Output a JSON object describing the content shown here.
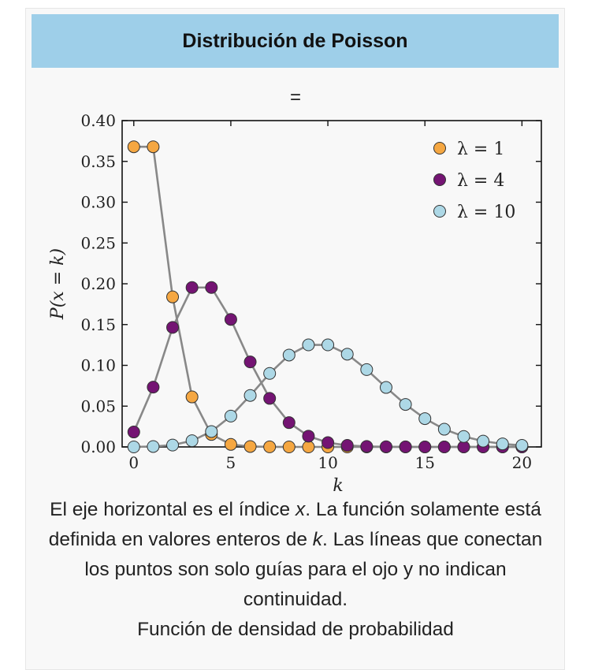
{
  "header": {
    "title": "Distribución de Poisson"
  },
  "top_label": "=",
  "caption": {
    "part1": "El eje horizontal es el índice ",
    "var_x": "x",
    "part2": ". La función solamente está definida en valores enteros de ",
    "var_k": "k",
    "part3": ". Las líneas que conectan los puntos son solo guías para el ojo y no indican continuidad.",
    "subtitle": "Función de densidad de probabilidad"
  },
  "chart_data": {
    "type": "line",
    "xlabel": "k",
    "ylabel": "P(x = k)",
    "xlim": [
      -0.6,
      21
    ],
    "ylim": [
      0,
      0.4
    ],
    "xticks": [
      0,
      5,
      10,
      15,
      20
    ],
    "xtick_labels": [
      "0",
      "5",
      "10",
      "15",
      "20"
    ],
    "yticks": [
      0,
      0.05,
      0.1,
      0.15,
      0.2,
      0.25,
      0.3,
      0.35,
      0.4
    ],
    "ytick_labels": [
      "0.00",
      "0.05",
      "0.10",
      "0.15",
      "0.20",
      "0.25",
      "0.30",
      "0.35",
      "0.40"
    ],
    "grid": false,
    "legend_position": "top-right",
    "line_color": "#888888",
    "series": [
      {
        "name": "λ = 1",
        "color": "#f5a742",
        "x": [
          0,
          1,
          2,
          3,
          4,
          5,
          6,
          7,
          8,
          9,
          10,
          11,
          12,
          13,
          14,
          15,
          16,
          17,
          18,
          19,
          20
        ],
        "values": [
          0.3679,
          0.3679,
          0.1839,
          0.0613,
          0.0153,
          0.0031,
          0.0005,
          0.0001,
          0,
          0,
          0,
          0,
          0,
          0,
          0,
          0,
          0,
          0,
          0,
          0,
          0
        ]
      },
      {
        "name": "λ = 4",
        "color": "#741473",
        "x": [
          0,
          1,
          2,
          3,
          4,
          5,
          6,
          7,
          8,
          9,
          10,
          11,
          12,
          13,
          14,
          15,
          16,
          17,
          18,
          19,
          20
        ],
        "values": [
          0.0183,
          0.0733,
          0.1465,
          0.1954,
          0.1954,
          0.1563,
          0.1042,
          0.0595,
          0.0298,
          0.0132,
          0.0053,
          0.0019,
          0.0006,
          0.0002,
          0.0001,
          0,
          0,
          0,
          0,
          0,
          0
        ]
      },
      {
        "name": "λ = 10",
        "color": "#add8e6",
        "x": [
          0,
          1,
          2,
          3,
          4,
          5,
          6,
          7,
          8,
          9,
          10,
          11,
          12,
          13,
          14,
          15,
          16,
          17,
          18,
          19,
          20
        ],
        "values": [
          0.0,
          0.0005,
          0.0023,
          0.0076,
          0.0189,
          0.0378,
          0.0631,
          0.0901,
          0.1126,
          0.1251,
          0.1251,
          0.1137,
          0.0948,
          0.0729,
          0.0521,
          0.0347,
          0.0217,
          0.0128,
          0.0071,
          0.0037,
          0.0019
        ]
      }
    ]
  }
}
